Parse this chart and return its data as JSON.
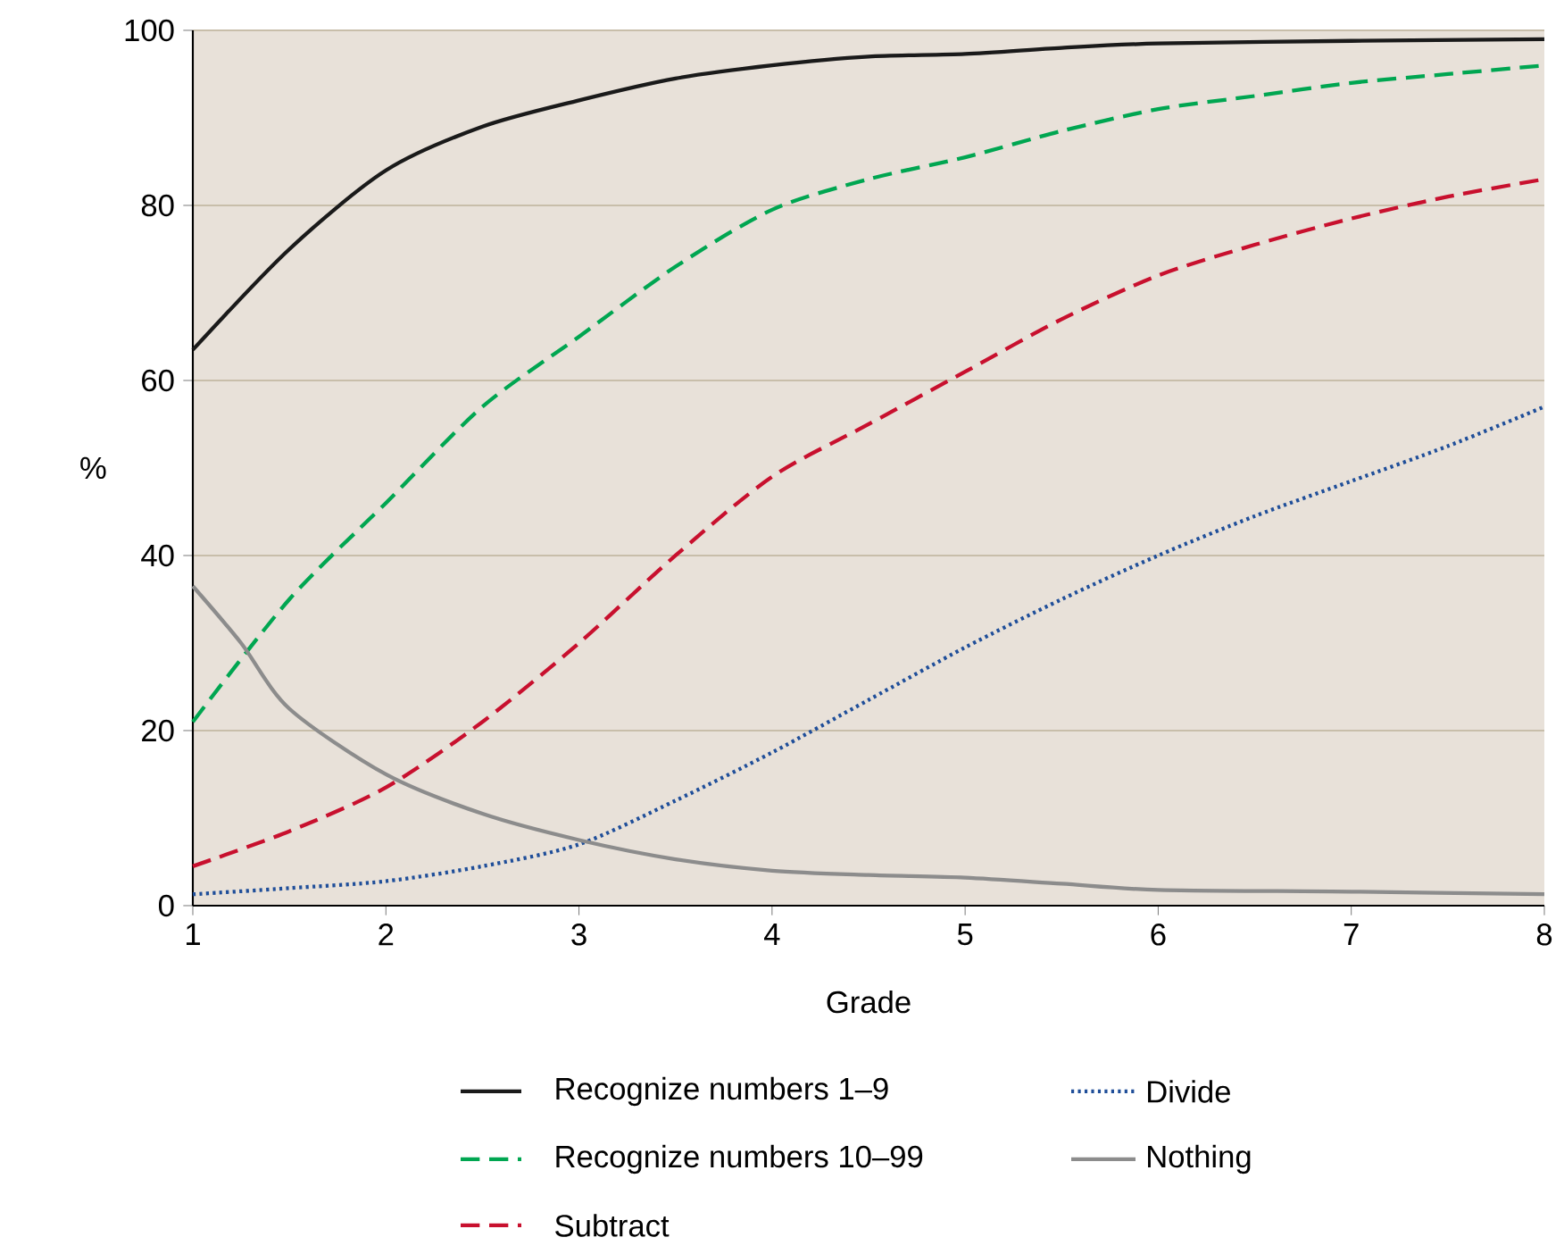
{
  "chart_data": {
    "type": "line",
    "xlabel": "Grade",
    "ylabel": "%",
    "xlim": [
      1,
      8
    ],
    "xticks": [
      1,
      2,
      3,
      4,
      5,
      6,
      7,
      8
    ],
    "ylim": [
      0,
      100
    ],
    "yticks": [
      0,
      20,
      40,
      60,
      80,
      100
    ],
    "grid": "y",
    "legend": "bottom",
    "marker": "none",
    "series": [
      {
        "name": "Recognize numbers 1–9",
        "color": "#1a1a1a",
        "line_style": "solid",
        "x": [
          1,
          1.5,
          2,
          2.5,
          3,
          3.5,
          4,
          4.5,
          5,
          5.5,
          6,
          7,
          8
        ],
        "values": [
          63.5,
          75,
          84,
          89,
          92,
          94.5,
          96,
          97,
          97.3,
          98,
          98.5,
          98.8,
          99
        ]
      },
      {
        "name": "Recognize numbers 10–99",
        "color": "#00a651",
        "line_style": "dashed",
        "x": [
          1,
          1.5,
          2,
          2.5,
          3,
          3.5,
          4,
          4.5,
          5,
          5.5,
          6,
          6.5,
          7,
          7.5,
          8
        ],
        "values": [
          21,
          35,
          46,
          57,
          65,
          73,
          79.5,
          83,
          85.5,
          88.5,
          91,
          92.5,
          94,
          95,
          96
        ]
      },
      {
        "name": "Subtract",
        "color": "#c8102e",
        "line_style": "dashed",
        "x": [
          1,
          1.5,
          2,
          2.5,
          3,
          3.5,
          4,
          4.5,
          5,
          5.5,
          6,
          6.5,
          7,
          7.5,
          8
        ],
        "values": [
          4.5,
          8.5,
          13.5,
          21,
          30,
          40,
          49,
          55,
          61,
          67,
          72,
          75.5,
          78.5,
          81,
          83
        ]
      },
      {
        "name": "Divide",
        "color": "#1f4e99",
        "line_style": "dotted",
        "x": [
          1,
          1.5,
          2,
          2.5,
          3,
          3.5,
          4,
          4.5,
          5,
          5.5,
          6,
          6.5,
          7,
          7.5,
          8
        ],
        "values": [
          1.3,
          2,
          2.8,
          4.5,
          7,
          12,
          17.5,
          23.5,
          29.5,
          35,
          40,
          44.5,
          48.5,
          52.5,
          57
        ]
      },
      {
        "name": "Nothing",
        "color": "#8c8c8c",
        "line_style": "solid",
        "x": [
          1,
          1.25,
          1.5,
          2,
          2.5,
          3,
          3.5,
          4,
          4.5,
          5,
          5.5,
          6,
          7,
          8
        ],
        "values": [
          36.5,
          30,
          22.5,
          15,
          10.5,
          7.5,
          5.3,
          4,
          3.5,
          3.2,
          2.5,
          1.8,
          1.6,
          1.3
        ]
      }
    ]
  }
}
